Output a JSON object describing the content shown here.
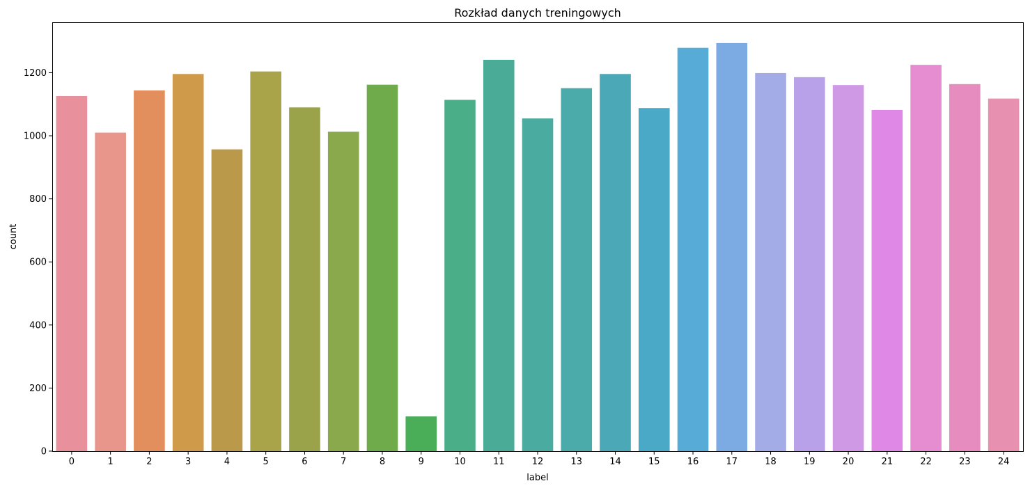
{
  "chart_data": {
    "type": "bar",
    "title": "Rozkład danych treningowych",
    "xlabel": "label",
    "ylabel": "count",
    "ylim": [
      0,
      1360
    ],
    "yticks": [
      0,
      200,
      400,
      600,
      800,
      1000,
      1200
    ],
    "categories": [
      "0",
      "1",
      "2",
      "3",
      "4",
      "5",
      "6",
      "7",
      "8",
      "9",
      "10",
      "11",
      "12",
      "13",
      "14",
      "15",
      "16",
      "17",
      "18",
      "19",
      "20",
      "21",
      "22",
      "23",
      "24"
    ],
    "values": [
      1126,
      1010,
      1144,
      1196,
      957,
      1204,
      1090,
      1013,
      1162,
      110,
      1114,
      1241,
      1055,
      1151,
      1196,
      1088,
      1279,
      1294,
      1199,
      1186,
      1161,
      1082,
      1225,
      1164,
      1118
    ],
    "colors": [
      "#e8909c",
      "#e8968c",
      "#e38f5d",
      "#cf9a4a",
      "#ba9a4a",
      "#a9a34a",
      "#9aa349",
      "#8aa94c",
      "#6fab4b",
      "#4aae58",
      "#4aaf88",
      "#4aab96",
      "#4aaba0",
      "#4aabaa",
      "#4aa8b7",
      "#4aa9c6",
      "#56acd6",
      "#7caae2",
      "#a4ace8",
      "#b8a1e8",
      "#cf99e6",
      "#e088e6",
      "#e68cd0",
      "#e78cbe",
      "#e890b0"
    ],
    "grid": false,
    "legend": "none"
  }
}
